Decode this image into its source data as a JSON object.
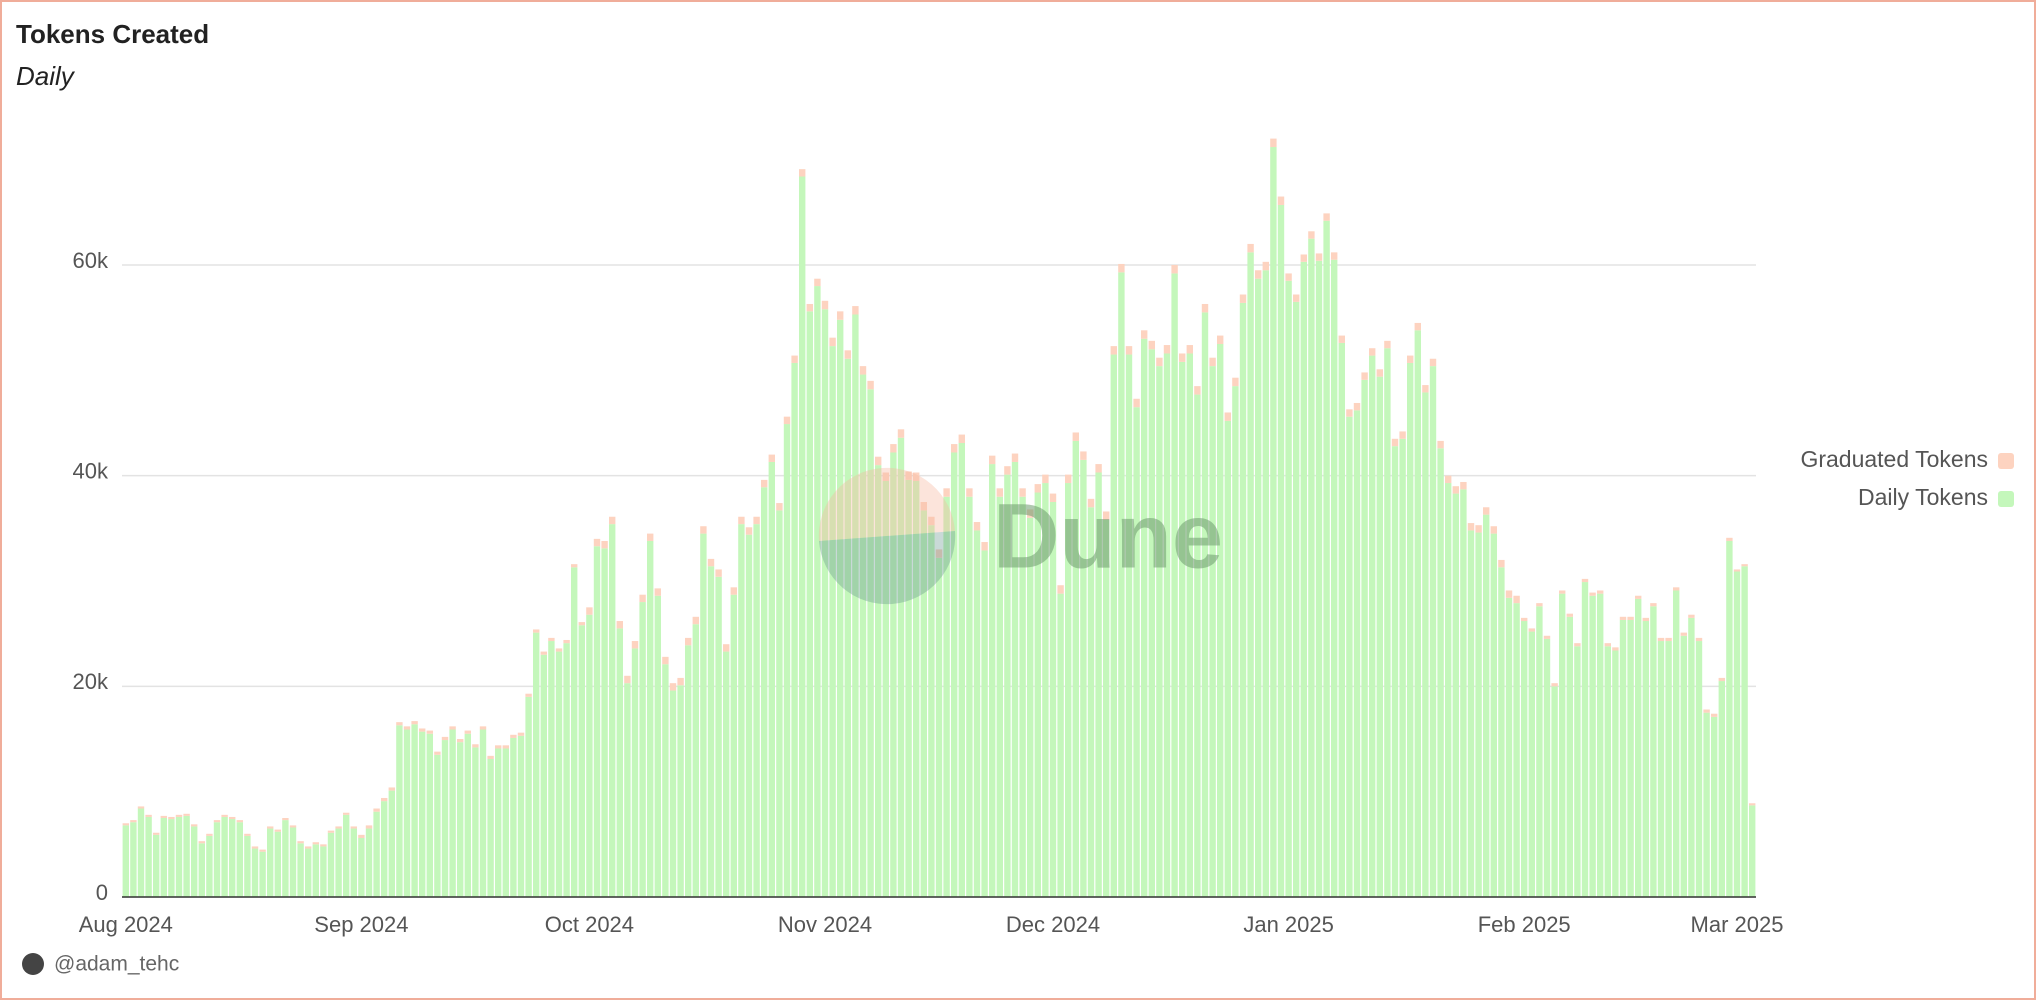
{
  "chart_data": {
    "type": "stacked_bar",
    "title": "Tokens Created",
    "subtitle": "Daily",
    "author": "@adam_tehc",
    "watermark": "Dune",
    "categories": [
      "Aug 2024",
      null,
      null,
      null,
      null,
      null,
      null,
      null,
      null,
      null,
      null,
      null,
      null,
      null,
      null,
      null,
      null,
      null,
      null,
      null,
      null,
      null,
      null,
      null,
      null,
      null,
      null,
      null,
      null,
      null,
      null,
      "Sep 2024",
      null,
      null,
      null,
      null,
      null,
      null,
      null,
      null,
      null,
      null,
      null,
      null,
      null,
      null,
      null,
      null,
      null,
      null,
      null,
      null,
      null,
      null,
      null,
      null,
      null,
      null,
      null,
      null,
      null,
      "Oct 2024",
      null,
      null,
      null,
      null,
      null,
      null,
      null,
      null,
      null,
      null,
      null,
      null,
      null,
      null,
      null,
      null,
      null,
      null,
      null,
      null,
      null,
      null,
      null,
      null,
      null,
      null,
      null,
      null,
      null,
      null,
      "Nov 2024",
      null,
      null,
      null,
      null,
      null,
      null,
      null,
      null,
      null,
      null,
      null,
      null,
      null,
      null,
      null,
      null,
      null,
      null,
      null,
      null,
      null,
      null,
      null,
      null,
      null,
      null,
      null,
      null,
      null,
      "Dec 2024",
      null,
      null,
      null,
      null,
      null,
      null,
      null,
      null,
      null,
      null,
      null,
      null,
      null,
      null,
      null,
      null,
      null,
      null,
      null,
      null,
      null,
      null,
      null,
      null,
      null,
      null,
      null,
      null,
      null,
      null,
      "Jan 2025",
      null,
      null,
      null,
      null,
      null,
      null,
      null,
      null,
      null,
      null,
      null,
      null,
      null,
      null,
      null,
      null,
      null,
      null,
      null,
      null,
      null,
      null,
      null,
      null,
      null,
      null,
      null,
      null,
      null,
      null,
      "Feb 2025",
      null,
      null,
      null,
      null,
      null,
      null,
      null,
      null,
      null,
      null,
      null,
      null,
      null,
      null,
      null,
      null,
      null,
      null,
      null,
      null,
      null,
      null,
      null,
      null,
      null,
      null,
      null,
      "Mar 2025",
      null,
      null
    ],
    "series": [
      {
        "name": "Daily Tokens",
        "color": "#c4f7bb",
        "values": [
          6800,
          7100,
          8400,
          7600,
          5900,
          7500,
          7400,
          7600,
          7700,
          6700,
          5100,
          5800,
          7100,
          7600,
          7400,
          7100,
          5800,
          4600,
          4300,
          6500,
          6200,
          7300,
          6600,
          5100,
          4600,
          5000,
          4800,
          6100,
          6500,
          7800,
          6500,
          5600,
          6500,
          8100,
          9100,
          10100,
          16300,
          15900,
          16400,
          15700,
          15500,
          13500,
          14900,
          15900,
          14700,
          15500,
          14200,
          15900,
          13100,
          14100,
          14100,
          15100,
          15300,
          19000,
          25100,
          23000,
          24300,
          23300,
          24100,
          31300,
          25800,
          26800,
          33300,
          33100,
          35400,
          25500,
          20300,
          23600,
          28000,
          33800,
          28600,
          22100,
          19600,
          20100,
          23900,
          25900,
          34500,
          31400,
          30400,
          23300,
          28700,
          35400,
          34400,
          35400,
          38900,
          41300,
          36700,
          44900,
          50700,
          68400,
          55600,
          58000,
          55800,
          52300,
          54800,
          51100,
          55300,
          49600,
          48200,
          41000,
          39500,
          42200,
          43600,
          39600,
          39500,
          36700,
          35300,
          32200,
          38000,
          42200,
          43100,
          38000,
          34800,
          32900,
          41100,
          38000,
          40100,
          41300,
          38000,
          36000,
          38400,
          39300,
          37500,
          28800,
          39300,
          43300,
          41500,
          37000,
          40300,
          35800,
          51500,
          59300,
          51500,
          46500,
          53000,
          52000,
          50400,
          51600,
          59200,
          50800,
          51600,
          47700,
          55500,
          50400,
          52500,
          45200,
          48500,
          56400,
          61200,
          58700,
          59500,
          71200,
          65700,
          58500,
          56500,
          60300,
          62500,
          60400,
          64200,
          60500,
          52600,
          45600,
          46200,
          49100,
          51400,
          49400,
          52100,
          42800,
          43500,
          50700,
          53800,
          47900,
          50400,
          42600,
          39300,
          38300,
          38700,
          34800,
          34600,
          36300,
          34500,
          31300,
          28400,
          27900,
          26200,
          25200,
          27600,
          24500,
          20000,
          28800,
          26600,
          23800,
          29900,
          28600,
          28800,
          23800,
          23400,
          26300,
          26300,
          28300,
          26200,
          27600,
          24300,
          24300,
          29100,
          24800,
          26500,
          24300,
          17500,
          17100,
          20500,
          33800,
          30900,
          31400,
          8700
        ]
      },
      {
        "name": "Graduated Tokens",
        "color": "#fdd3c0",
        "values": [
          200,
          200,
          200,
          200,
          200,
          200,
          200,
          200,
          200,
          200,
          200,
          200,
          200,
          200,
          200,
          200,
          200,
          200,
          200,
          200,
          200,
          200,
          200,
          200,
          200,
          200,
          200,
          200,
          200,
          200,
          200,
          300,
          300,
          300,
          300,
          300,
          300,
          300,
          300,
          300,
          300,
          300,
          300,
          300,
          300,
          300,
          300,
          300,
          300,
          300,
          300,
          300,
          300,
          300,
          300,
          300,
          300,
          300,
          300,
          300,
          300,
          700,
          700,
          700,
          700,
          700,
          700,
          700,
          700,
          700,
          700,
          700,
          700,
          700,
          700,
          700,
          700,
          700,
          700,
          700,
          700,
          700,
          700,
          700,
          700,
          700,
          700,
          700,
          700,
          700,
          700,
          700,
          800,
          800,
          800,
          800,
          800,
          800,
          800,
          800,
          800,
          800,
          800,
          800,
          800,
          800,
          800,
          800,
          800,
          800,
          800,
          800,
          800,
          800,
          800,
          800,
          800,
          800,
          800,
          800,
          800,
          800,
          800,
          800,
          800,
          800,
          800,
          800,
          800,
          800,
          800,
          800,
          800,
          800,
          800,
          800,
          800,
          800,
          800,
          800,
          800,
          800,
          800,
          800,
          800,
          800,
          800,
          800,
          800,
          800,
          800,
          800,
          800,
          700,
          700,
          700,
          700,
          700,
          700,
          700,
          700,
          700,
          700,
          700,
          700,
          700,
          700,
          700,
          700,
          700,
          700,
          700,
          700,
          700,
          700,
          700,
          700,
          700,
          700,
          700,
          700,
          700,
          700,
          700,
          300,
          300,
          300,
          300,
          300,
          300,
          300,
          300,
          300,
          300,
          300,
          300,
          300,
          300,
          300,
          300,
          300,
          300,
          300,
          300,
          300,
          300,
          300,
          300,
          300,
          300,
          300,
          300,
          200,
          200,
          200
        ]
      }
    ],
    "ylim": [
      0,
      75000
    ],
    "yticks": [
      0,
      {
        "value": 20000,
        "label": "20k"
      },
      {
        "value": 40000,
        "label": "40k"
      },
      {
        "value": 60000,
        "label": "60k"
      }
    ],
    "grid": true,
    "legend": "right"
  }
}
